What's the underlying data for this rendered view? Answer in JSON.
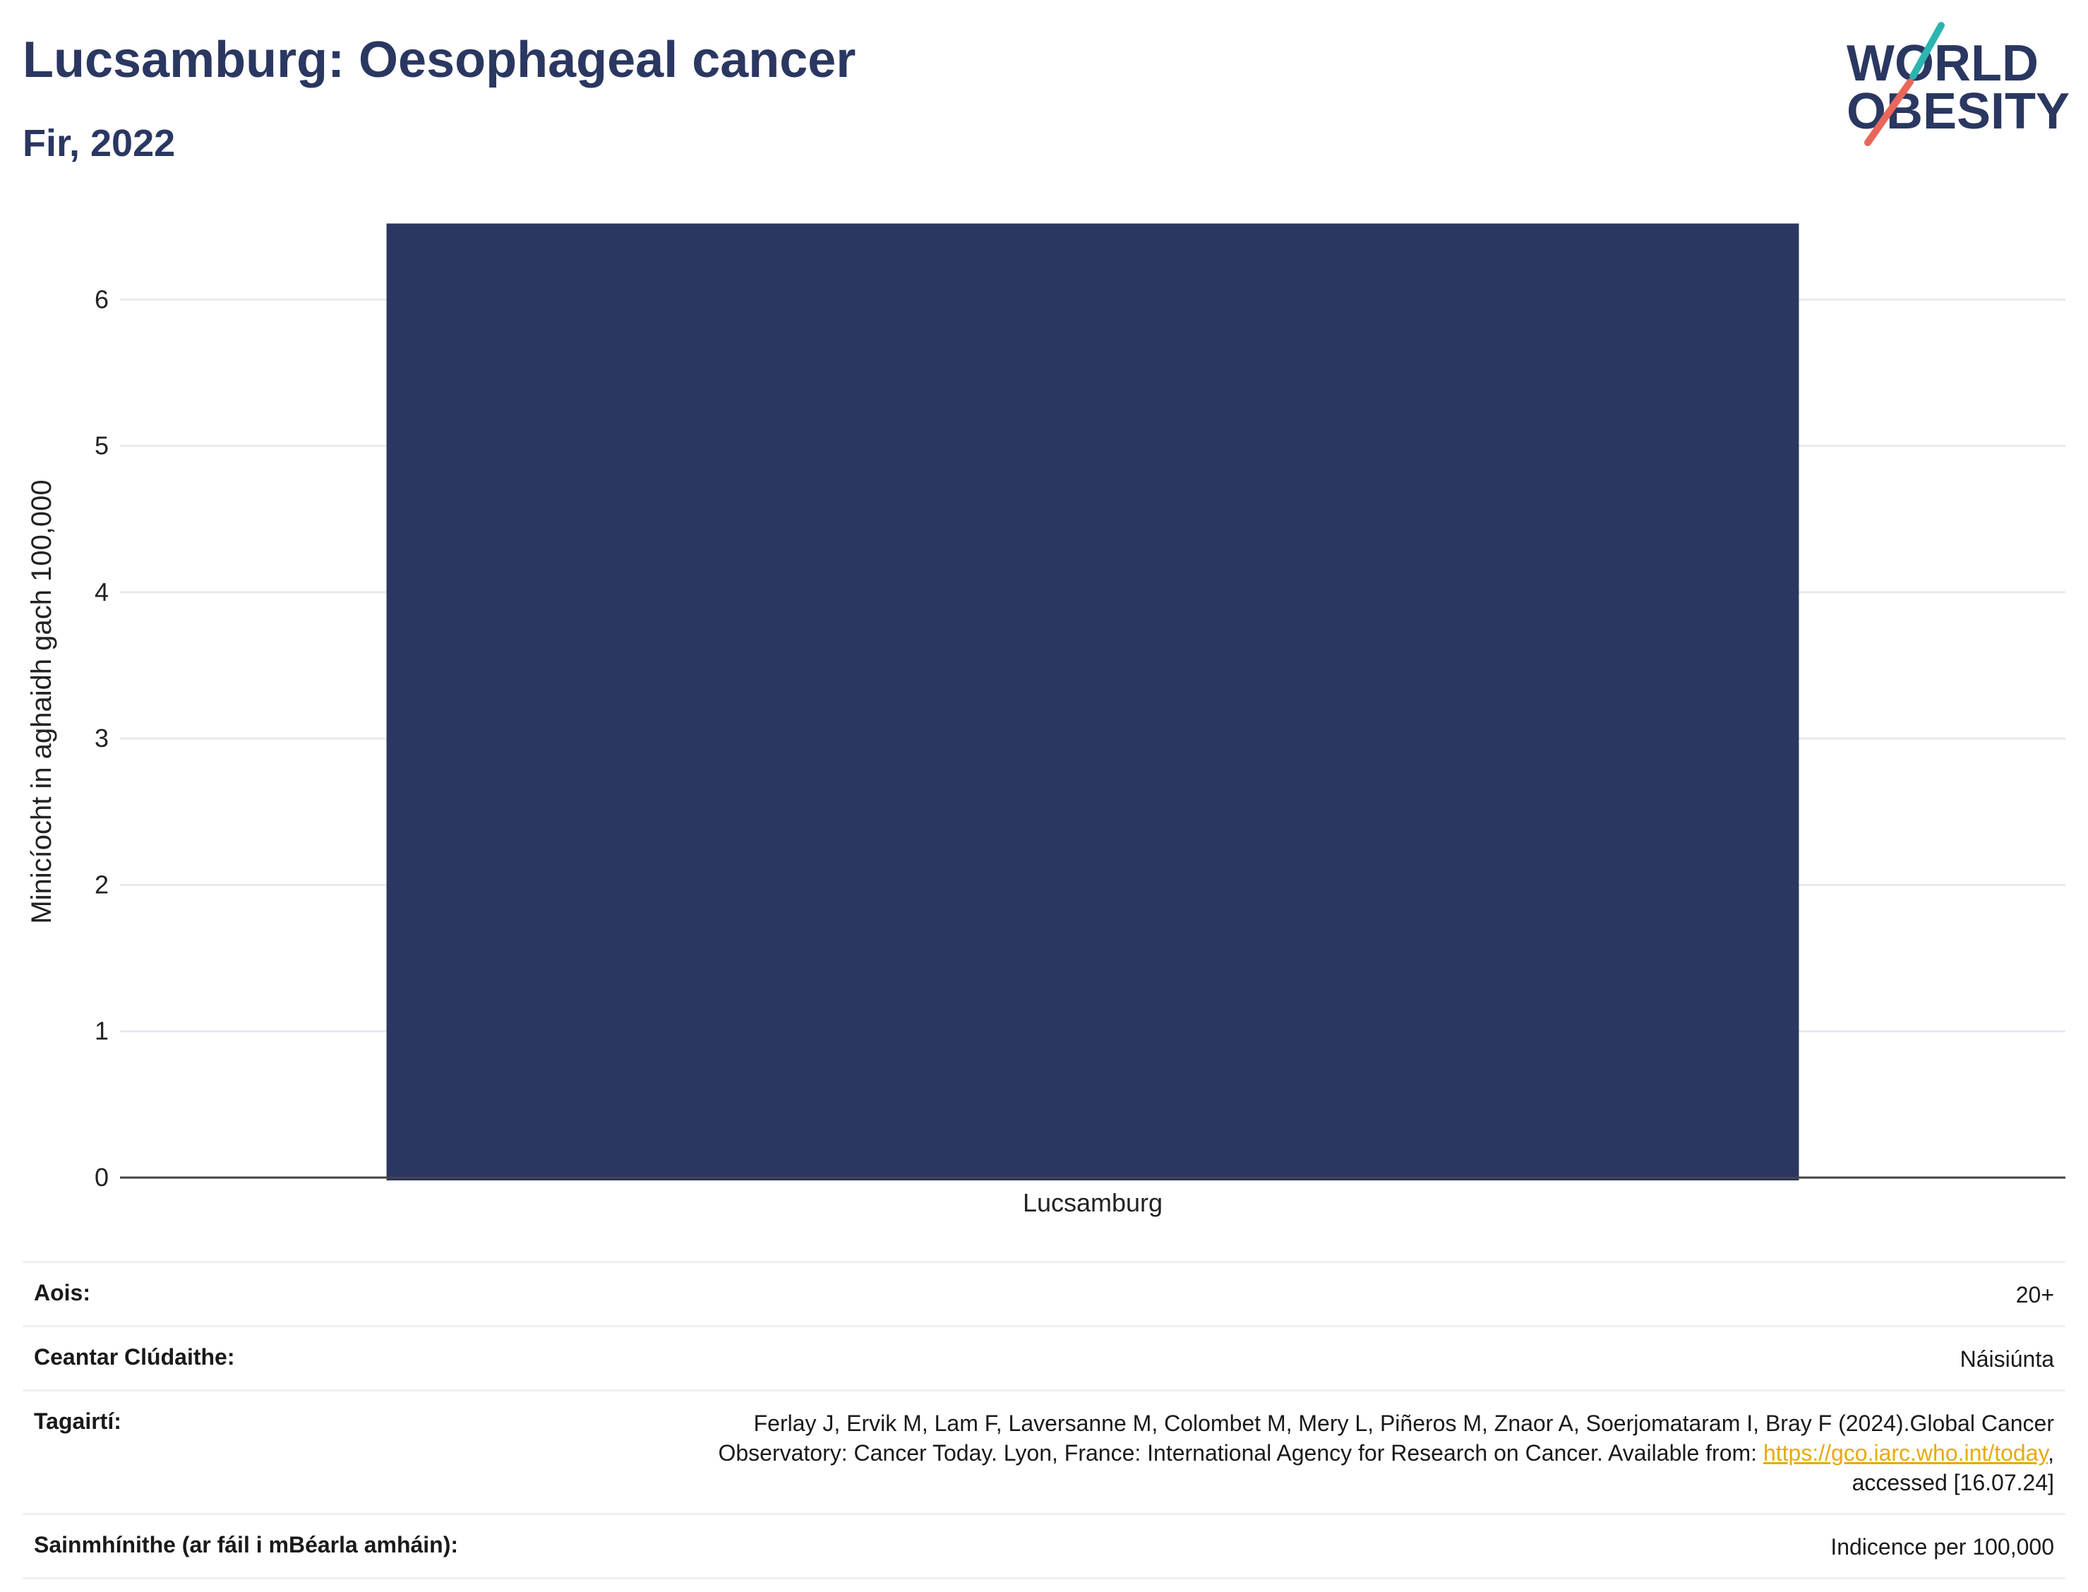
{
  "header": {
    "title": "Lucsamburg: Oesophageal cancer",
    "subtitle": "Fir, 2022"
  },
  "logo": {
    "line1": "WORLD",
    "line2": "OBESITY"
  },
  "colors": {
    "bar": "#2a3761",
    "title": "#2a3761",
    "grid": "#e8e9ee",
    "logo_teal": "#2bb5b0",
    "logo_coral": "#e8675a",
    "link": "#e8a90e"
  },
  "chart_data": {
    "type": "bar",
    "categories": [
      "Lucsamburg"
    ],
    "values": [
      6.52
    ],
    "ylabel": "Minicíocht in aghaidh gach 100,000",
    "xlabel": "",
    "ylim": [
      0,
      6.6
    ],
    "yticks": [
      0,
      1,
      2,
      3,
      4,
      5,
      6
    ],
    "grid": true
  },
  "info": {
    "age_label": "Aois:",
    "age_value": "20+",
    "coverage_label": "Ceantar Clúdaithe:",
    "coverage_value": "Náisiúnta",
    "refs_label": "Tagairtí:",
    "refs_line1": "Ferlay J, Ervik M, Lam F, Laversanne M, Colombet M, Mery L, Piñeros M, Znaor A, Soerjomataram I, Bray F (2024).Global Cancer",
    "refs_line2_pre": "Observatory: Cancer Today. Lyon, France: International Agency for Research on Cancer. Available from: ",
    "refs_link": "https://gco.iarc.who.int/today",
    "refs_line2_post": ",",
    "refs_line3": "accessed [16.07.24]",
    "defs_label": "Sainmhínithe (ar fáil i mBéarla amháin):",
    "defs_value": "Indicence per 100,000"
  }
}
